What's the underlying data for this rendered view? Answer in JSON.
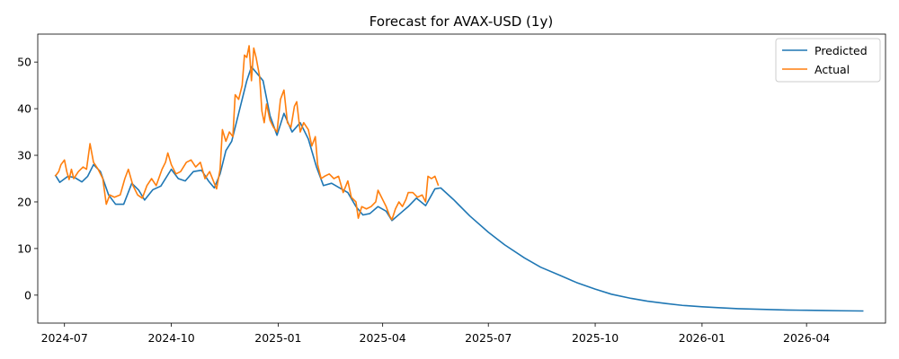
{
  "chart_data": {
    "type": "line",
    "title": "Forecast for AVAX-USD (1y)",
    "xlabel": "",
    "ylabel": "",
    "x_ticks": [
      "2024-07",
      "2024-10",
      "2025-01",
      "2025-04",
      "2025-07",
      "2025-10",
      "2026-01",
      "2026-04"
    ],
    "y_ticks": [
      0,
      10,
      20,
      30,
      40,
      50
    ],
    "xlim": [
      "2024-06-08",
      "2026-06-08"
    ],
    "ylim": [
      -6,
      56
    ],
    "grid": false,
    "legend_position": "top-right",
    "series": [
      {
        "name": "Predicted",
        "color": "#1f77b4",
        "points": [
          [
            "2024-06-23",
            25.8
          ],
          [
            "2024-06-27",
            24.2
          ],
          [
            "2024-07-04",
            25.5
          ],
          [
            "2024-07-10",
            25.2
          ],
          [
            "2024-07-16",
            24.3
          ],
          [
            "2024-07-21",
            25.5
          ],
          [
            "2024-07-26",
            28.0
          ],
          [
            "2024-08-01",
            26.5
          ],
          [
            "2024-08-08",
            21.5
          ],
          [
            "2024-08-14",
            19.5
          ],
          [
            "2024-08-21",
            19.5
          ],
          [
            "2024-08-28",
            24.0
          ],
          [
            "2024-09-03",
            22.5
          ],
          [
            "2024-09-08",
            20.4
          ],
          [
            "2024-09-15",
            22.6
          ],
          [
            "2024-09-22",
            23.4
          ],
          [
            "2024-10-01",
            27.0
          ],
          [
            "2024-10-07",
            25.0
          ],
          [
            "2024-10-13",
            24.5
          ],
          [
            "2024-10-20",
            26.5
          ],
          [
            "2024-10-27",
            26.8
          ],
          [
            "2024-11-02",
            24.5
          ],
          [
            "2024-11-07",
            23.0
          ],
          [
            "2024-11-12",
            26.0
          ],
          [
            "2024-11-17",
            31.0
          ],
          [
            "2024-11-22",
            33.0
          ],
          [
            "2024-11-29",
            40.0
          ],
          [
            "2024-12-05",
            46.0
          ],
          [
            "2024-12-09",
            49.0
          ],
          [
            "2024-12-14",
            47.5
          ],
          [
            "2024-12-19",
            46.0
          ],
          [
            "2024-12-25",
            38.5
          ],
          [
            "2024-12-31",
            34.3
          ],
          [
            "2025-01-06",
            39.0
          ],
          [
            "2025-01-13",
            35.0
          ],
          [
            "2025-01-20",
            37.0
          ],
          [
            "2025-01-27",
            33.5
          ],
          [
            "2025-02-03",
            27.5
          ],
          [
            "2025-02-09",
            23.5
          ],
          [
            "2025-02-16",
            24.0
          ],
          [
            "2025-02-23",
            23.0
          ],
          [
            "2025-03-02",
            22.0
          ],
          [
            "2025-03-09",
            19.0
          ],
          [
            "2025-03-15",
            17.2
          ],
          [
            "2025-03-21",
            17.5
          ],
          [
            "2025-03-28",
            19.0
          ],
          [
            "2025-04-04",
            18.0
          ],
          [
            "2025-04-09",
            16.0
          ],
          [
            "2025-04-16",
            17.5
          ],
          [
            "2025-04-23",
            19.0
          ],
          [
            "2025-04-30",
            20.8
          ],
          [
            "2025-05-08",
            19.2
          ],
          [
            "2025-05-16",
            22.8
          ],
          [
            "2025-05-21",
            23.0
          ],
          [
            "2025-06-01",
            20.5
          ],
          [
            "2025-06-15",
            17.0
          ],
          [
            "2025-07-01",
            13.5
          ],
          [
            "2025-07-15",
            10.8
          ],
          [
            "2025-08-01",
            8.0
          ],
          [
            "2025-08-15",
            6.0
          ],
          [
            "2025-09-01",
            4.2
          ],
          [
            "2025-09-15",
            2.7
          ],
          [
            "2025-10-01",
            1.3
          ],
          [
            "2025-10-15",
            0.2
          ],
          [
            "2025-11-01",
            -0.7
          ],
          [
            "2025-11-15",
            -1.3
          ],
          [
            "2025-12-01",
            -1.8
          ],
          [
            "2025-12-15",
            -2.2
          ],
          [
            "2026-01-01",
            -2.5
          ],
          [
            "2026-01-15",
            -2.7
          ],
          [
            "2026-02-01",
            -2.9
          ],
          [
            "2026-02-15",
            -3.0
          ],
          [
            "2026-03-01",
            -3.1
          ],
          [
            "2026-03-15",
            -3.2
          ],
          [
            "2026-04-01",
            -3.25
          ],
          [
            "2026-04-15",
            -3.3
          ],
          [
            "2026-05-01",
            -3.35
          ],
          [
            "2026-05-20",
            -3.4
          ]
        ]
      },
      {
        "name": "Actual",
        "color": "#ff7f0e",
        "points": [
          [
            "2024-06-23",
            25.5
          ],
          [
            "2024-06-26",
            26.5
          ],
          [
            "2024-06-28",
            28.0
          ],
          [
            "2024-07-01",
            29.0
          ],
          [
            "2024-07-03",
            26.5
          ],
          [
            "2024-07-05",
            24.8
          ],
          [
            "2024-07-07",
            27.0
          ],
          [
            "2024-07-09",
            25.0
          ],
          [
            "2024-07-13",
            26.5
          ],
          [
            "2024-07-17",
            27.5
          ],
          [
            "2024-07-20",
            27.0
          ],
          [
            "2024-07-23",
            32.5
          ],
          [
            "2024-07-26",
            28.5
          ],
          [
            "2024-07-30",
            27.0
          ],
          [
            "2024-08-03",
            25.0
          ],
          [
            "2024-08-06",
            19.5
          ],
          [
            "2024-08-09",
            21.5
          ],
          [
            "2024-08-13",
            21.0
          ],
          [
            "2024-08-18",
            21.5
          ],
          [
            "2024-08-22",
            25.0
          ],
          [
            "2024-08-25",
            27.0
          ],
          [
            "2024-08-29",
            23.5
          ],
          [
            "2024-09-02",
            21.5
          ],
          [
            "2024-09-06",
            20.8
          ],
          [
            "2024-09-10",
            23.5
          ],
          [
            "2024-09-14",
            25.0
          ],
          [
            "2024-09-18",
            23.5
          ],
          [
            "2024-09-23",
            27.0
          ],
          [
            "2024-09-26",
            28.5
          ],
          [
            "2024-09-28",
            30.5
          ],
          [
            "2024-10-01",
            28.0
          ],
          [
            "2024-10-05",
            26.0
          ],
          [
            "2024-10-09",
            26.5
          ],
          [
            "2024-10-14",
            28.5
          ],
          [
            "2024-10-18",
            29.0
          ],
          [
            "2024-10-22",
            27.5
          ],
          [
            "2024-10-26",
            28.5
          ],
          [
            "2024-10-30",
            25.0
          ],
          [
            "2024-11-03",
            26.5
          ],
          [
            "2024-11-07",
            24.0
          ],
          [
            "2024-11-09",
            22.8
          ],
          [
            "2024-11-12",
            27.0
          ],
          [
            "2024-11-14",
            35.5
          ],
          [
            "2024-11-17",
            33.0
          ],
          [
            "2024-11-20",
            35.0
          ],
          [
            "2024-11-23",
            34.0
          ],
          [
            "2024-11-25",
            43.0
          ],
          [
            "2024-11-28",
            42.0
          ],
          [
            "2024-12-01",
            45.0
          ],
          [
            "2024-12-03",
            51.5
          ],
          [
            "2024-12-05",
            51.0
          ],
          [
            "2024-12-07",
            53.5
          ],
          [
            "2024-12-09",
            46.0
          ],
          [
            "2024-12-11",
            53.0
          ],
          [
            "2024-12-13",
            51.0
          ],
          [
            "2024-12-16",
            47.0
          ],
          [
            "2024-12-18",
            39.5
          ],
          [
            "2024-12-20",
            37.0
          ],
          [
            "2024-12-22",
            41.0
          ],
          [
            "2024-12-25",
            37.5
          ],
          [
            "2024-12-28",
            36.0
          ],
          [
            "2024-12-31",
            35.0
          ],
          [
            "2025-01-03",
            42.0
          ],
          [
            "2025-01-06",
            44.0
          ],
          [
            "2025-01-09",
            37.0
          ],
          [
            "2025-01-12",
            36.0
          ],
          [
            "2025-01-15",
            40.5
          ],
          [
            "2025-01-17",
            41.5
          ],
          [
            "2025-01-20",
            35.0
          ],
          [
            "2025-01-23",
            37.0
          ],
          [
            "2025-01-27",
            35.5
          ],
          [
            "2025-01-30",
            32.0
          ],
          [
            "2025-02-02",
            34.0
          ],
          [
            "2025-02-04",
            28.0
          ],
          [
            "2025-02-07",
            25.0
          ],
          [
            "2025-02-10",
            25.5
          ],
          [
            "2025-02-14",
            26.0
          ],
          [
            "2025-02-18",
            25.0
          ],
          [
            "2025-02-22",
            25.5
          ],
          [
            "2025-02-26",
            22.0
          ],
          [
            "2025-03-02",
            24.5
          ],
          [
            "2025-03-05",
            21.0
          ],
          [
            "2025-03-09",
            20.0
          ],
          [
            "2025-03-11",
            16.5
          ],
          [
            "2025-03-14",
            19.0
          ],
          [
            "2025-03-18",
            18.5
          ],
          [
            "2025-03-22",
            19.0
          ],
          [
            "2025-03-26",
            20.0
          ],
          [
            "2025-03-28",
            22.5
          ],
          [
            "2025-04-01",
            20.5
          ],
          [
            "2025-04-04",
            19.0
          ],
          [
            "2025-04-07",
            17.0
          ],
          [
            "2025-04-09",
            16.2
          ],
          [
            "2025-04-12",
            18.5
          ],
          [
            "2025-04-15",
            20.0
          ],
          [
            "2025-04-18",
            19.0
          ],
          [
            "2025-04-21",
            20.5
          ],
          [
            "2025-04-23",
            22.0
          ],
          [
            "2025-04-27",
            22.0
          ],
          [
            "2025-05-01",
            21.0
          ],
          [
            "2025-05-05",
            21.5
          ],
          [
            "2025-05-08",
            20.0
          ],
          [
            "2025-05-10",
            25.5
          ],
          [
            "2025-05-13",
            25.0
          ],
          [
            "2025-05-16",
            25.5
          ],
          [
            "2025-05-19",
            23.5
          ]
        ]
      }
    ]
  }
}
